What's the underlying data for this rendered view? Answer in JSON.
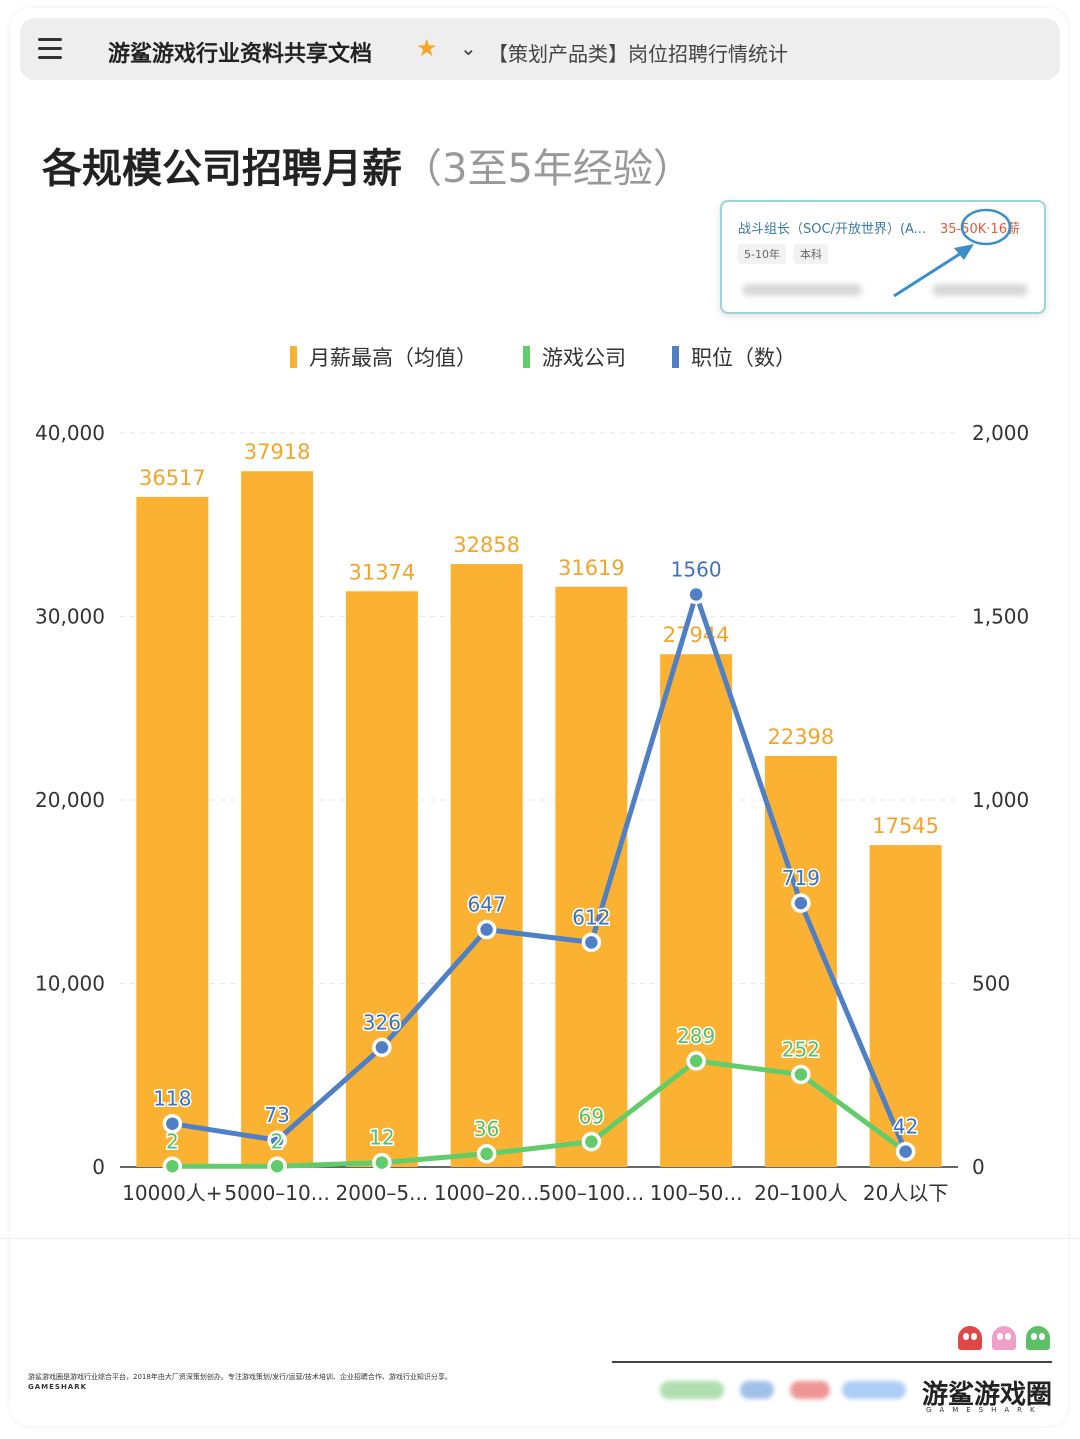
{
  "header": {
    "doc_title": "游鲨游戏行业资料共享文档",
    "breadcrumb": "【策划产品类】岗位招聘行情统计"
  },
  "page": {
    "title": "各规模公司招聘月薪",
    "subtitle": "（3至5年经验）"
  },
  "job_card": {
    "name": "战斗组长（SOC/开放世界）(A...",
    "salary": "35-50K·16薪",
    "tags": [
      "5-10年",
      "本科"
    ]
  },
  "legend": {
    "items": [
      {
        "label": "月薪最高（均值）",
        "color": "#fbb232"
      },
      {
        "label": "游戏公司",
        "color": "#62cc6a"
      },
      {
        "label": "职位（数）",
        "color": "#4f7fc4"
      }
    ]
  },
  "chart_data": {
    "type": "bar",
    "categories": [
      "10000人+",
      "5000–10...",
      "2000–5...",
      "1000–20...",
      "500–100...",
      "100–50...",
      "20–100人",
      "20人以下"
    ],
    "y_left": {
      "ticks": [
        "0",
        "10,000",
        "20,000",
        "30,000",
        "40,000"
      ],
      "ylim": [
        0,
        40000
      ]
    },
    "y_right": {
      "ticks": [
        "0",
        "500",
        "1,000",
        "1,500",
        "2,000"
      ],
      "ylim": [
        0,
        2000
      ]
    },
    "grid": true,
    "series": [
      {
        "name": "月薪最高（均值）",
        "type": "bar",
        "axis": "left",
        "color": "#fbb232",
        "label_color": "#f2a52a",
        "values": [
          36517,
          37918,
          31374,
          32858,
          31619,
          27944,
          22398,
          17545
        ]
      },
      {
        "name": "游戏公司",
        "type": "line",
        "axis": "right",
        "color": "#62cc6a",
        "label_color": "#5cc065",
        "values": [
          2,
          2,
          12,
          36,
          69,
          289,
          252,
          42
        ]
      },
      {
        "name": "职位（数）",
        "type": "line",
        "axis": "right",
        "color": "#4f7fc4",
        "label_color": "#3f72b8",
        "values": [
          118,
          73,
          326,
          647,
          612,
          1560,
          719,
          42
        ]
      }
    ]
  },
  "footer": {
    "description": "游鲨游戏圈是游戏行业综合平台，2018年由大厂资深策划创办。专注游戏策划/发行/运营/技术培训、企业招聘合作、游戏行业知识分享。",
    "brand_small": "GAMESHARK",
    "logo": "游鲨游戏圈",
    "logo_en": "GAMESHARK"
  }
}
